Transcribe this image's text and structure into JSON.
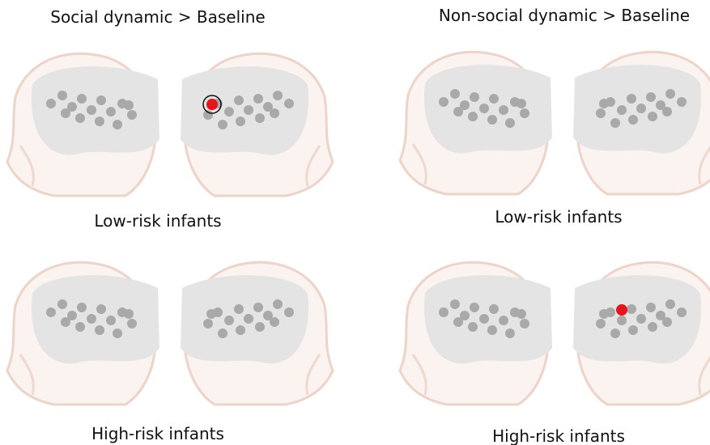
{
  "panels": [
    {
      "title": "Social dynamic > Baseline",
      "rows": [
        "Low-risk infants",
        "High-risk infants"
      ]
    },
    {
      "title": "Non-social dynamic > Baseline",
      "rows": [
        "Low-risk infants",
        "High-risk infants"
      ]
    }
  ]
}
